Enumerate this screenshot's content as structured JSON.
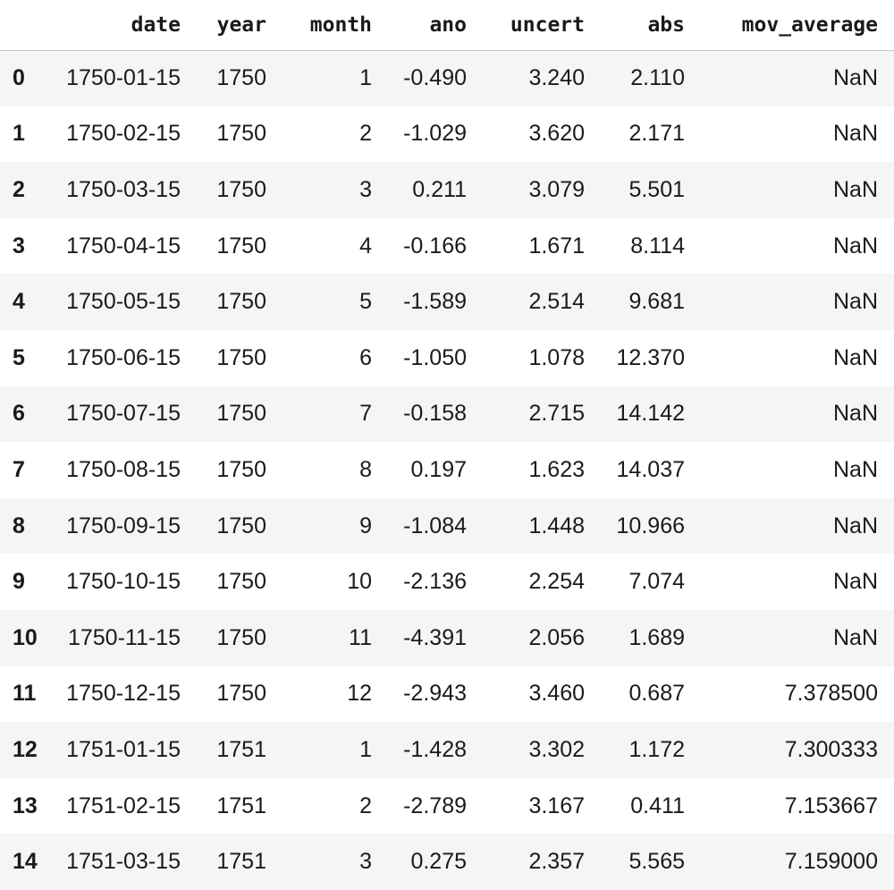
{
  "table": {
    "columns": [
      "date",
      "year",
      "month",
      "ano",
      "uncert",
      "abs",
      "mov_average"
    ],
    "rows": [
      {
        "index": "0",
        "cells": [
          "1750-01-15",
          "1750",
          "1",
          "-0.490",
          "3.240",
          "2.110",
          "NaN"
        ]
      },
      {
        "index": "1",
        "cells": [
          "1750-02-15",
          "1750",
          "2",
          "-1.029",
          "3.620",
          "2.171",
          "NaN"
        ]
      },
      {
        "index": "2",
        "cells": [
          "1750-03-15",
          "1750",
          "3",
          "0.211",
          "3.079",
          "5.501",
          "NaN"
        ]
      },
      {
        "index": "3",
        "cells": [
          "1750-04-15",
          "1750",
          "4",
          "-0.166",
          "1.671",
          "8.114",
          "NaN"
        ]
      },
      {
        "index": "4",
        "cells": [
          "1750-05-15",
          "1750",
          "5",
          "-1.589",
          "2.514",
          "9.681",
          "NaN"
        ]
      },
      {
        "index": "5",
        "cells": [
          "1750-06-15",
          "1750",
          "6",
          "-1.050",
          "1.078",
          "12.370",
          "NaN"
        ]
      },
      {
        "index": "6",
        "cells": [
          "1750-07-15",
          "1750",
          "7",
          "-0.158",
          "2.715",
          "14.142",
          "NaN"
        ]
      },
      {
        "index": "7",
        "cells": [
          "1750-08-15",
          "1750",
          "8",
          "0.197",
          "1.623",
          "14.037",
          "NaN"
        ]
      },
      {
        "index": "8",
        "cells": [
          "1750-09-15",
          "1750",
          "9",
          "-1.084",
          "1.448",
          "10.966",
          "NaN"
        ]
      },
      {
        "index": "9",
        "cells": [
          "1750-10-15",
          "1750",
          "10",
          "-2.136",
          "2.254",
          "7.074",
          "NaN"
        ]
      },
      {
        "index": "10",
        "cells": [
          "1750-11-15",
          "1750",
          "11",
          "-4.391",
          "2.056",
          "1.689",
          "NaN"
        ]
      },
      {
        "index": "11",
        "cells": [
          "1750-12-15",
          "1750",
          "12",
          "-2.943",
          "3.460",
          "0.687",
          "7.378500"
        ]
      },
      {
        "index": "12",
        "cells": [
          "1751-01-15",
          "1751",
          "1",
          "-1.428",
          "3.302",
          "1.172",
          "7.300333"
        ]
      },
      {
        "index": "13",
        "cells": [
          "1751-02-15",
          "1751",
          "2",
          "-2.789",
          "3.167",
          "0.411",
          "7.153667"
        ]
      },
      {
        "index": "14",
        "cells": [
          "1751-03-15",
          "1751",
          "3",
          "0.275",
          "2.357",
          "5.565",
          "7.159000"
        ]
      }
    ]
  }
}
